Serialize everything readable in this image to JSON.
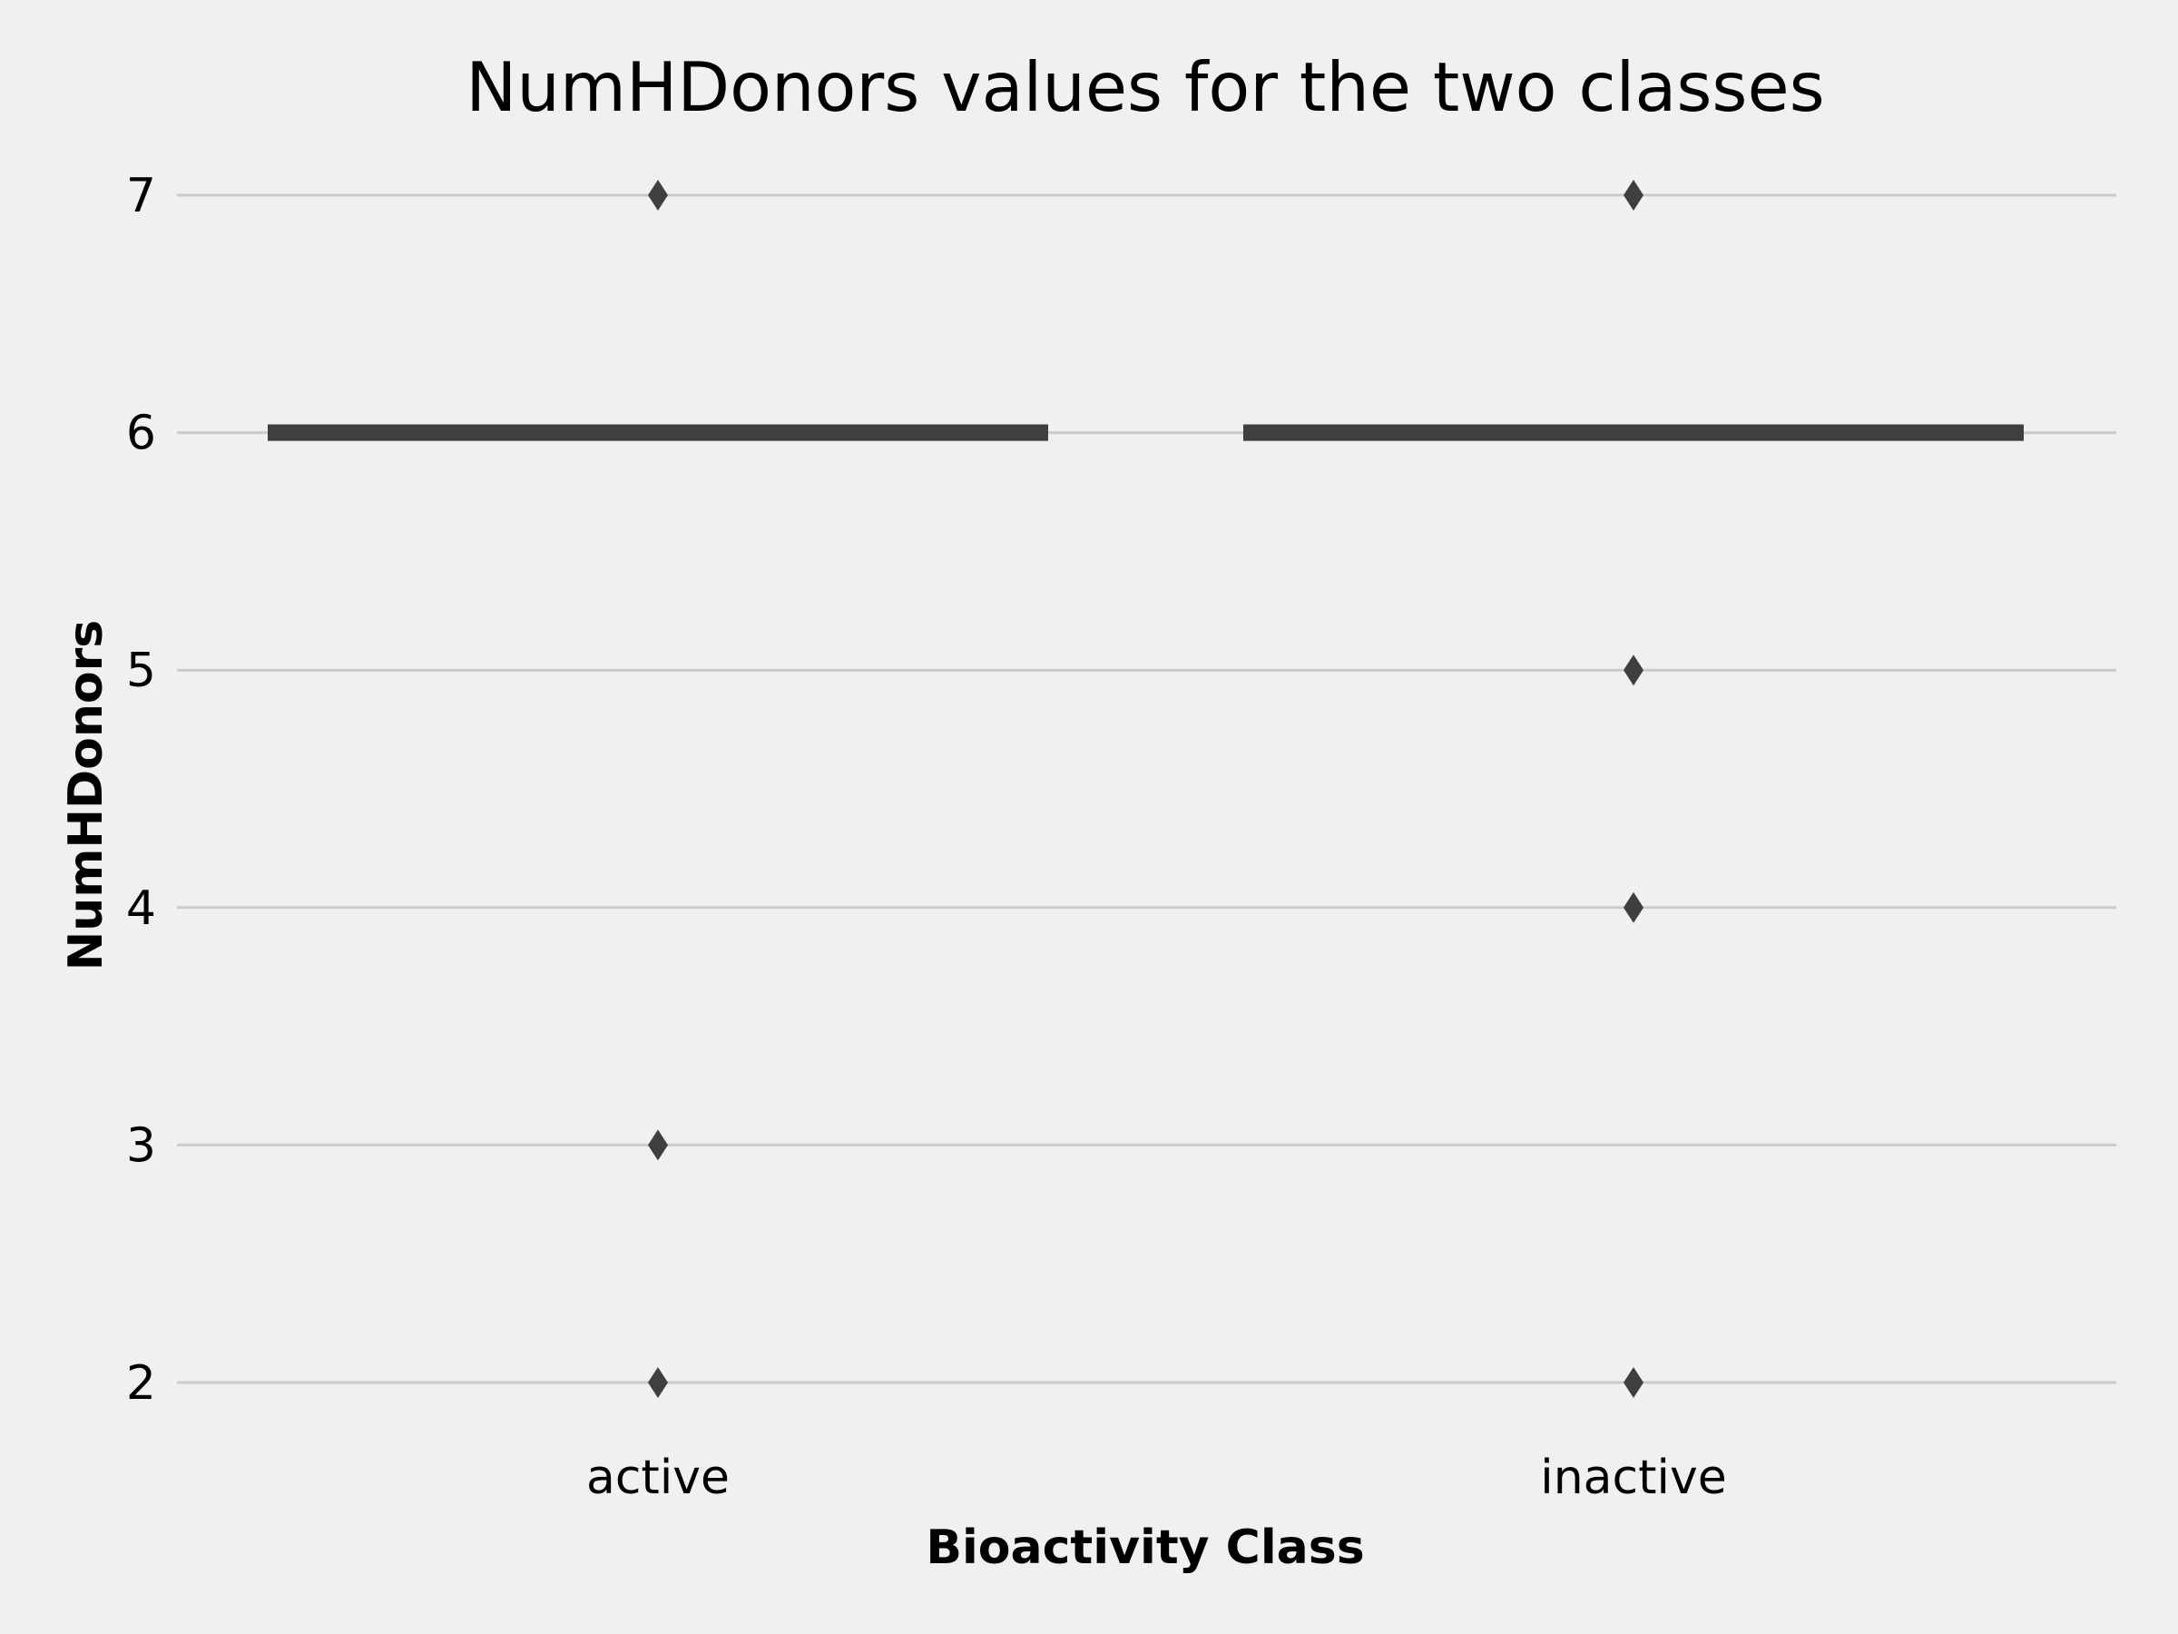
{
  "chart_data": {
    "type": "box",
    "title": "NumHDonors values for the two classes",
    "xlabel": "Bioactivity Class",
    "ylabel": "NumHDonors",
    "categories": [
      "active",
      "inactive"
    ],
    "ylim": [
      1.8,
      7.2
    ],
    "yticks": [
      2,
      3,
      4,
      5,
      6,
      7
    ],
    "grid": "horizontal",
    "boxes": [
      {
        "category": "active",
        "q1": 6,
        "median": 6,
        "q3": 6,
        "whisker_low": 6,
        "whisker_high": 6,
        "outliers": [
          7,
          3,
          2
        ]
      },
      {
        "category": "inactive",
        "q1": 6,
        "median": 6,
        "q3": 6,
        "whisker_low": 6,
        "whisker_high": 6,
        "outliers": [
          7,
          5,
          4,
          2
        ]
      }
    ]
  },
  "colors": {
    "background": "#f0f0f0",
    "grid": "#cbcbcb",
    "box": "#3f3f3f",
    "text": "#000000"
  }
}
